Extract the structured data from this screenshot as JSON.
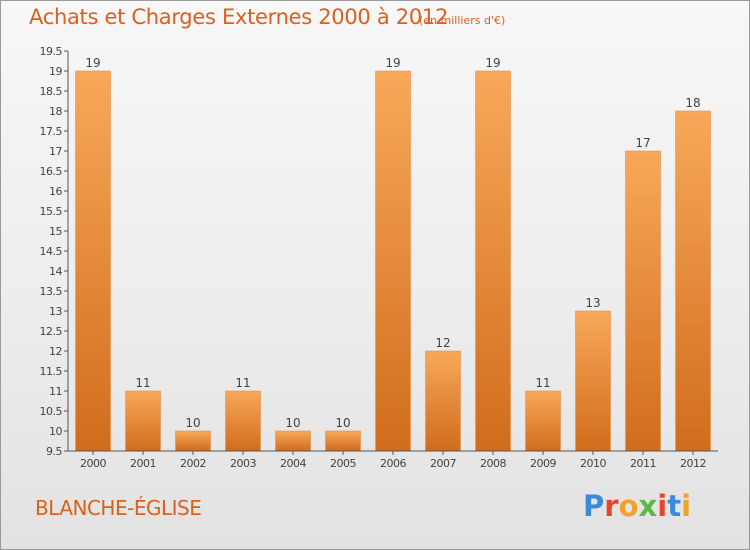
{
  "header": {
    "title": "Achats et Charges Externes 2000 à 2012",
    "unit": "(en milliers d'€)"
  },
  "footer": {
    "place": "BLANCHE-ÉGLISE",
    "logo_text": "Proxiti"
  },
  "colors": {
    "bar_top": "#f8a85a",
    "bar_bottom": "#d06d1c",
    "text_accent": "#d9601f",
    "logo": [
      "#3b8ad9",
      "#e8452d",
      "#f2a22b",
      "#59b848",
      "#e8452d",
      "#3b8ad9",
      "#f2a22b"
    ]
  },
  "chart_data": {
    "type": "bar",
    "categories": [
      "2000",
      "2001",
      "2002",
      "2003",
      "2004",
      "2005",
      "2006",
      "2007",
      "2008",
      "2009",
      "2010",
      "2011",
      "2012"
    ],
    "values": [
      19,
      11,
      10,
      11,
      10,
      10,
      19,
      12,
      19,
      11,
      13,
      17,
      18
    ],
    "value_labels": [
      "19",
      "11",
      "10",
      "11",
      "10",
      "10",
      "19",
      "12",
      "19",
      "11",
      "13",
      "17",
      "18"
    ],
    "title": "Achats et Charges Externes 2000 à 2012",
    "xlabel": "",
    "ylabel": "",
    "ylim": [
      9.5,
      19.5
    ],
    "yticks": [
      9.5,
      10,
      10.5,
      11,
      11.5,
      12,
      12.5,
      13,
      13.5,
      14,
      14.5,
      15,
      15.5,
      16,
      16.5,
      17,
      17.5,
      18,
      18.5,
      19,
      19.5
    ],
    "ytick_labels": [
      "9.5",
      "10",
      "10.5",
      "11",
      "11.5",
      "12",
      "12.5",
      "13",
      "13.5",
      "14",
      "14.5",
      "15",
      "15.5",
      "16",
      "16.5",
      "17",
      "17.5",
      "18",
      "18.5",
      "19",
      "19.5"
    ],
    "grid": false,
    "legend": "none"
  }
}
